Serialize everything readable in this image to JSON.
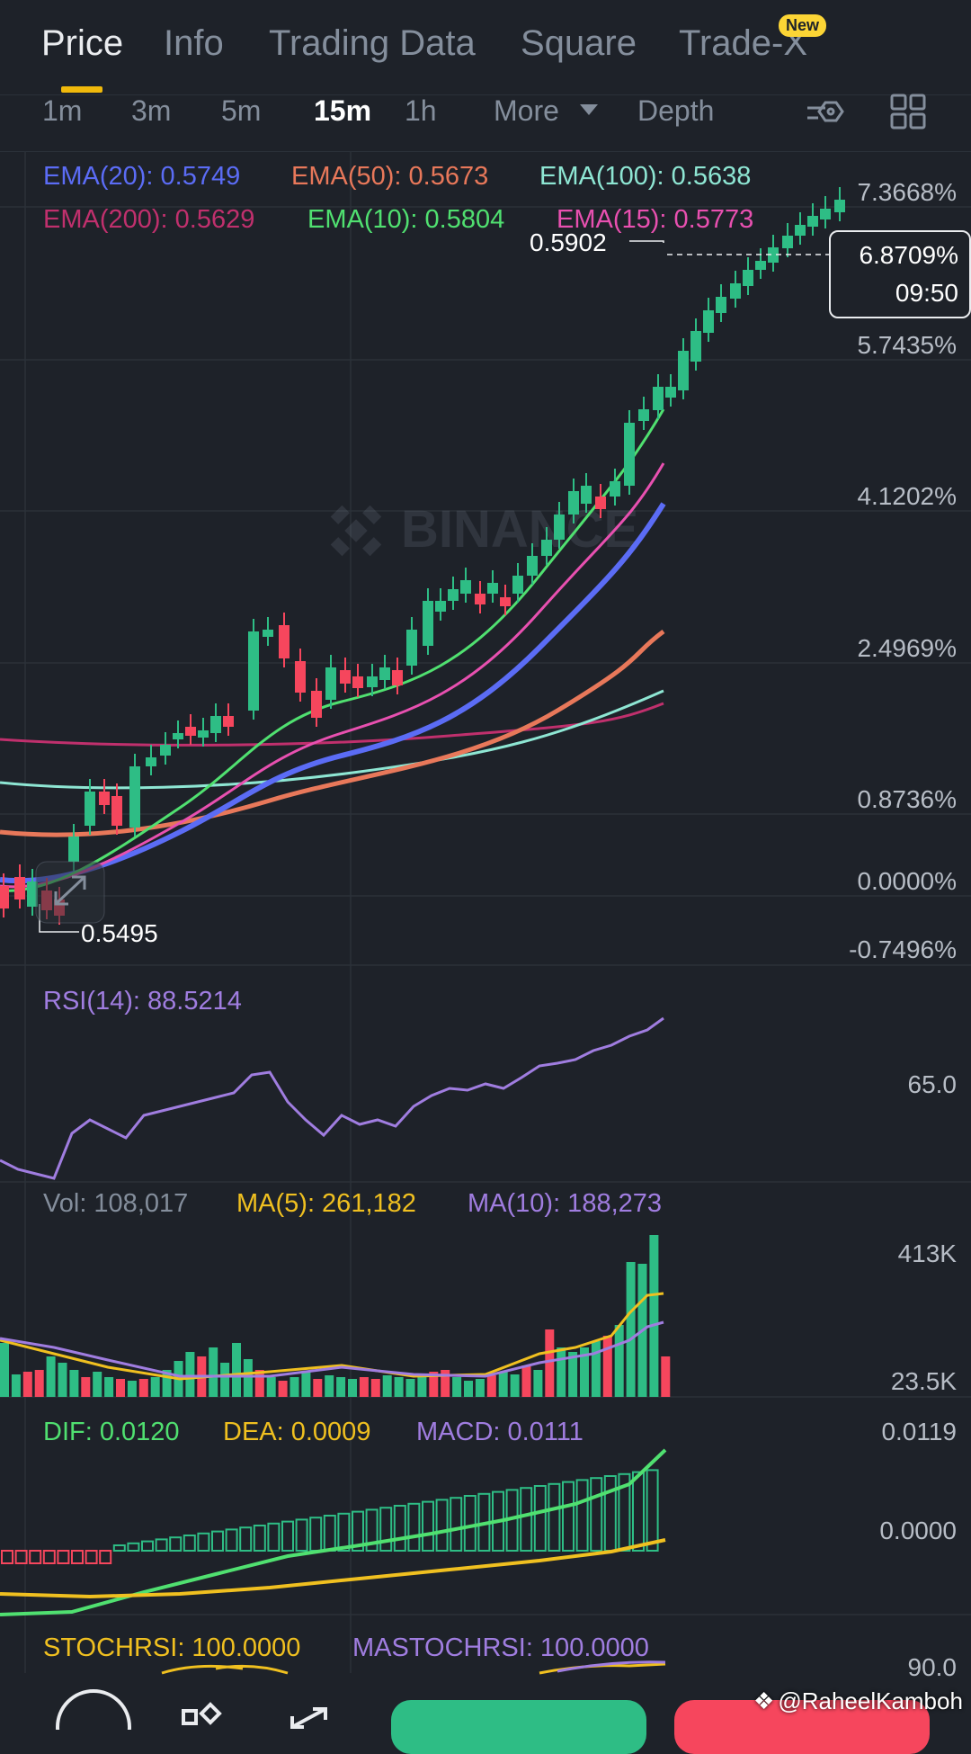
{
  "tabs": [
    "Price",
    "Info",
    "Trading Data",
    "Square",
    "Trade-X"
  ],
  "new_badge": "New",
  "timeframes": [
    "1m",
    "3m",
    "5m",
    "15m",
    "1h",
    "More",
    "Depth"
  ],
  "active_timeframe": "15m",
  "ema_legend": {
    "ema20": "EMA(20): 0.5749",
    "ema50": "EMA(50): 0.5673",
    "ema100": "EMA(100): 0.5638",
    "ema200": "EMA(200): 0.5629",
    "ema10": "EMA(10): 0.5804",
    "ema15": "EMA(15): 0.5773"
  },
  "price_axis": [
    "7.3668%",
    "5.7435%",
    "4.1202%",
    "2.4969%",
    "0.8736%",
    "0.0000%",
    "-0.7496%"
  ],
  "current_price_tag": {
    "percent": "6.8709%",
    "countdown": "09:50"
  },
  "high_label": "0.5902",
  "low_label": "0.5495",
  "watermark": "BINANCE",
  "rsi": {
    "label": "RSI(14): 88.5214",
    "axis": "65.0"
  },
  "volume": {
    "vol": "Vol: 108,017",
    "ma5": "MA(5): 261,182",
    "ma10": "MA(10): 188,273",
    "axis_top": "413K",
    "axis_bottom": "23.5K"
  },
  "macd": {
    "dif": "DIF: 0.0120",
    "dea": "DEA: 0.0009",
    "macd": "MACD: 0.0111",
    "axis_top": "0.0119",
    "axis_mid": "0.0000"
  },
  "stochrsi": {
    "stoch": "STOCHRSI: 100.0000",
    "mastoch": "MASTOCHRSI: 100.0000",
    "axis": "90.0"
  },
  "credit": "@RaheelKamboh",
  "colors": {
    "up": "#2ebd85",
    "down": "#f6465d",
    "ema20": "#5b6cf5",
    "ema50": "#e8785a",
    "ema100": "#8ee6d3",
    "ema200": "#c0306d",
    "ema10": "#50e070",
    "ema15": "#e850b0",
    "accent": "#f0b90b"
  }
}
